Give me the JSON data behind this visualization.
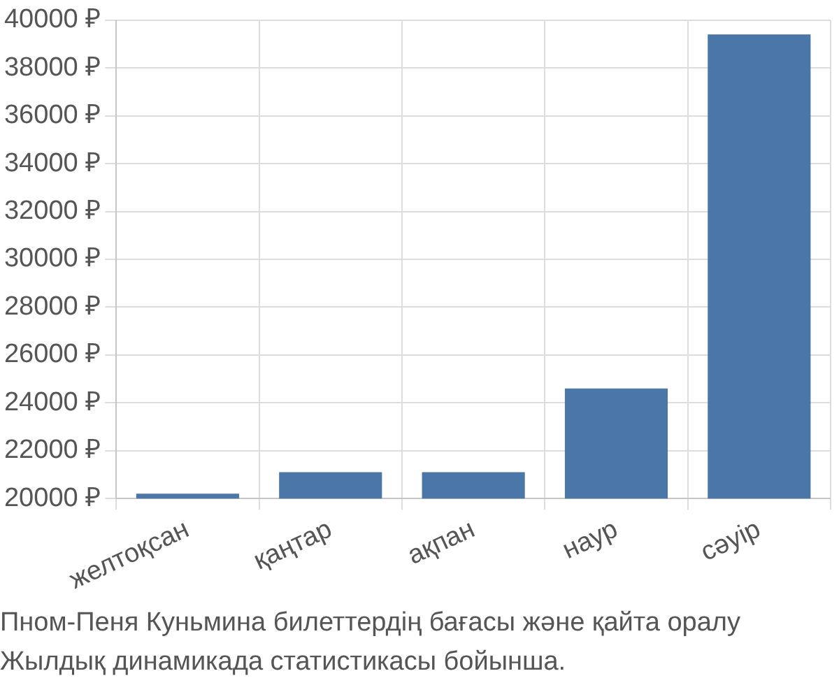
{
  "chart_data": {
    "type": "bar",
    "categories": [
      "желтоқсан",
      "қаңтар",
      "ақпан",
      "наур",
      "сәуір"
    ],
    "series": [
      {
        "color": "#4a76a8",
        "values": [
          20200,
          21100,
          21100,
          24600,
          39400
        ]
      }
    ],
    "ylim": [
      20000,
      40000
    ],
    "yticks": [
      {
        "value": 20000,
        "label": "20000 ₽"
      },
      {
        "value": 22000,
        "label": "22000 ₽"
      },
      {
        "value": 24000,
        "label": "24000 ₽"
      },
      {
        "value": 26000,
        "label": "26000 ₽"
      },
      {
        "value": 28000,
        "label": "28000 ₽"
      },
      {
        "value": 30000,
        "label": "30000 ₽"
      },
      {
        "value": 32000,
        "label": "32000 ₽"
      },
      {
        "value": 34000,
        "label": "34000 ₽"
      },
      {
        "value": 36000,
        "label": "36000 ₽"
      },
      {
        "value": 38000,
        "label": "38000 ₽"
      },
      {
        "value": 40000,
        "label": "40000 ₽"
      }
    ],
    "grid": true,
    "legend": false,
    "annotations": [
      "Пном-Пеня Куньмина билеттердің бағасы және қайта оралу",
      "Жылдық динамикада статистикасы бойынша."
    ]
  }
}
